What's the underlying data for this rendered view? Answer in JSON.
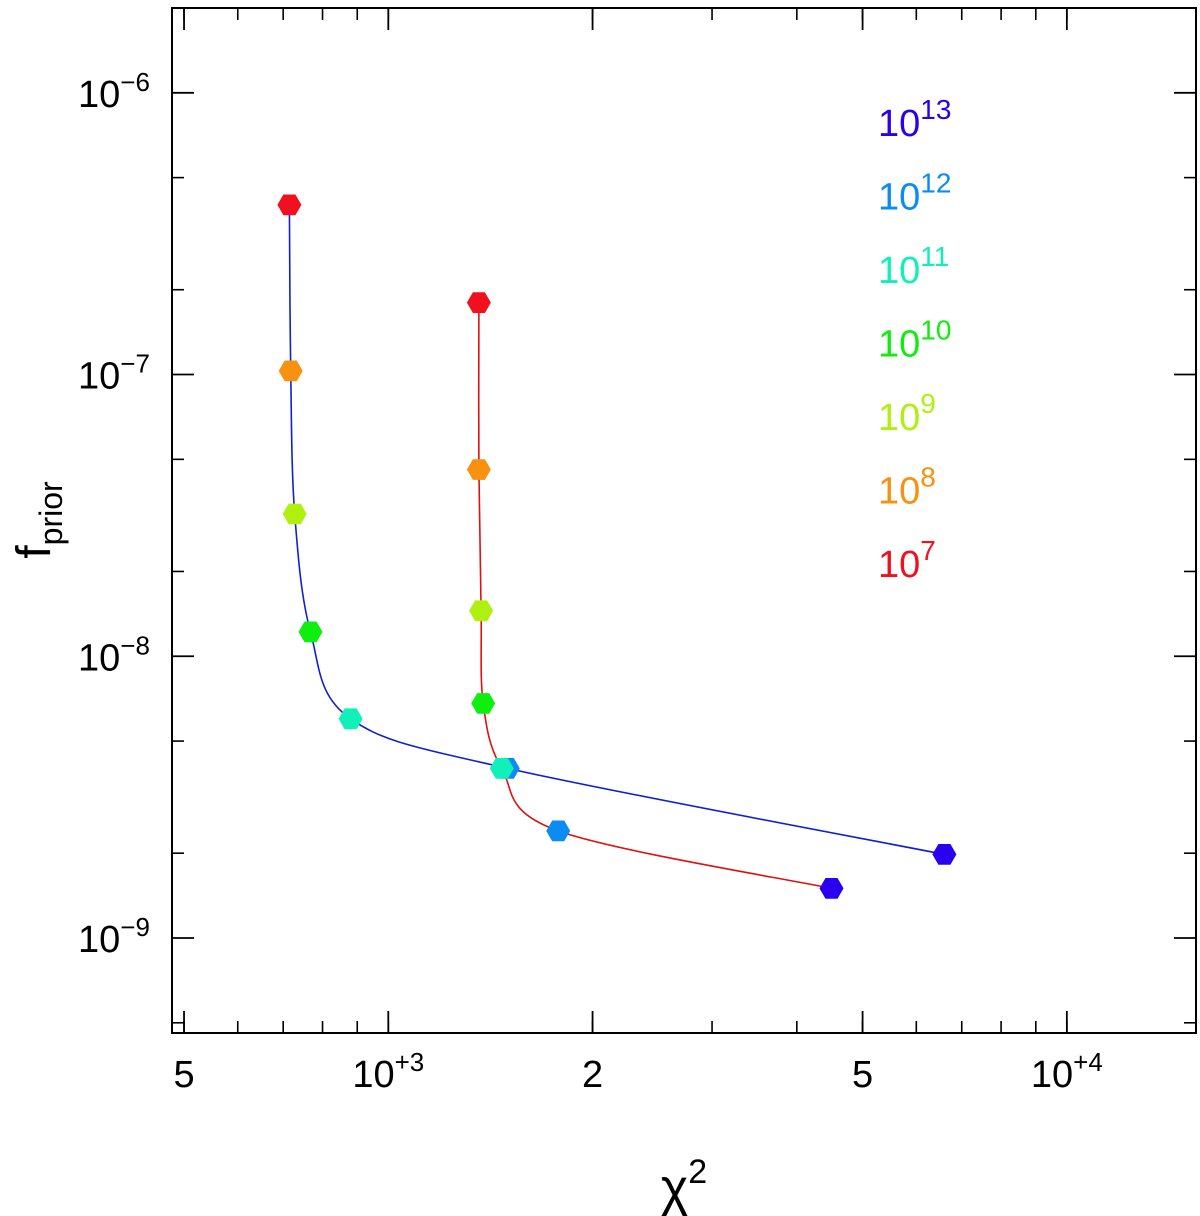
{
  "chart_data": {
    "type": "scatter",
    "xlabel": "χ",
    "xlabel_sup": "2",
    "ylabel": "f",
    "ylabel_sub": "prior",
    "xscale": "log",
    "yscale": "log",
    "xlim": [
      480,
      15500
    ],
    "ylim": [
      4.6e-10,
      2e-06
    ],
    "x_ticks": [
      {
        "value": 500,
        "base": "5",
        "exp": ""
      },
      {
        "value": 1000,
        "base": "10",
        "exp": "+3"
      },
      {
        "value": 2000,
        "base": "2",
        "exp": ""
      },
      {
        "value": 5000,
        "base": "5",
        "exp": ""
      },
      {
        "value": 10000,
        "base": "10",
        "exp": "+4"
      }
    ],
    "y_ticks": [
      {
        "value": 1e-09,
        "base": "10",
        "exp": "−9"
      },
      {
        "value": 1e-08,
        "base": "10",
        "exp": "−8"
      },
      {
        "value": 1e-07,
        "base": "10",
        "exp": "−7"
      },
      {
        "value": 1e-06,
        "base": "10",
        "exp": "−6"
      }
    ],
    "legend": [
      {
        "base": "10",
        "exp": "13",
        "color": "#2a00ee"
      },
      {
        "base": "10",
        "exp": "12",
        "color": "#0a8cf2"
      },
      {
        "base": "10",
        "exp": "11",
        "color": "#10f0b8"
      },
      {
        "base": "10",
        "exp": "10",
        "color": "#10ee10"
      },
      {
        "base": "10",
        "exp": "9",
        "color": "#b0f010"
      },
      {
        "base": "10",
        "exp": "8",
        "color": "#f89010"
      },
      {
        "base": "10",
        "exp": "7",
        "color": "#f01020"
      }
    ],
    "series": [
      {
        "line_color": "#1020d0",
        "x": [
          715,
          718,
          728,
          768,
          880,
          1500,
          6600
        ],
        "y": [
          4e-07,
          1.03e-07,
          3.2e-08,
          1.22e-08,
          6e-09,
          4e-09,
          1.98e-09
        ],
        "marker_colors": [
          "#f01020",
          "#f89010",
          "#b0f010",
          "#10ee10",
          "#10f0b8",
          "#0a8cf2",
          "#2a00ee"
        ]
      },
      {
        "line_color": "#e01010",
        "x": [
          1360,
          1360,
          1370,
          1380,
          1470,
          1780,
          4500
        ],
        "y": [
          1.8e-07,
          4.6e-08,
          1.45e-08,
          6.8e-09,
          4e-09,
          2.4e-09,
          1.5e-09
        ],
        "marker_colors": [
          "#f01020",
          "#f89010",
          "#b0f010",
          "#10ee10",
          "#10f0b8",
          "#0a8cf2",
          "#2a00ee"
        ]
      }
    ]
  }
}
